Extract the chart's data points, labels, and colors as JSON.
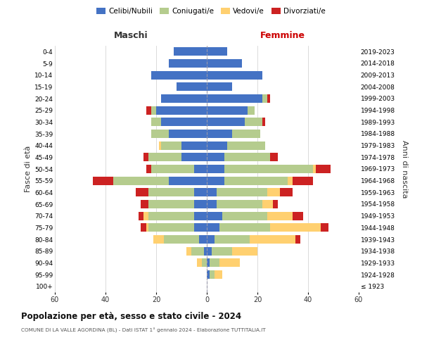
{
  "age_groups": [
    "100+",
    "95-99",
    "90-94",
    "85-89",
    "80-84",
    "75-79",
    "70-74",
    "65-69",
    "60-64",
    "55-59",
    "50-54",
    "45-49",
    "40-44",
    "35-39",
    "30-34",
    "25-29",
    "20-24",
    "15-19",
    "10-14",
    "5-9",
    "0-4"
  ],
  "birth_years": [
    "≤ 1923",
    "1924-1928",
    "1929-1933",
    "1934-1938",
    "1939-1943",
    "1944-1948",
    "1949-1953",
    "1954-1958",
    "1959-1963",
    "1964-1968",
    "1969-1973",
    "1974-1978",
    "1979-1983",
    "1984-1988",
    "1989-1993",
    "1994-1998",
    "1999-2003",
    "2004-2008",
    "2009-2013",
    "2014-2018",
    "2019-2023"
  ],
  "colors": {
    "celibi": "#4472C4",
    "coniugati": "#B5CC8E",
    "vedovi": "#FFD070",
    "divorziati": "#CC2222"
  },
  "maschi": {
    "celibi": [
      0,
      0,
      0,
      1,
      3,
      5,
      5,
      5,
      5,
      15,
      5,
      10,
      10,
      15,
      18,
      20,
      18,
      12,
      22,
      15,
      13
    ],
    "coniugati": [
      0,
      0,
      2,
      5,
      14,
      18,
      18,
      18,
      18,
      22,
      17,
      13,
      8,
      7,
      4,
      2,
      0,
      0,
      0,
      0,
      0
    ],
    "vedovi": [
      0,
      0,
      2,
      2,
      4,
      1,
      2,
      0,
      0,
      0,
      0,
      0,
      1,
      0,
      0,
      0,
      0,
      0,
      0,
      0,
      0
    ],
    "divorziati": [
      0,
      0,
      0,
      0,
      0,
      2,
      2,
      3,
      5,
      8,
      2,
      2,
      0,
      0,
      0,
      2,
      0,
      0,
      0,
      0,
      0
    ]
  },
  "femmine": {
    "celibi": [
      0,
      1,
      1,
      2,
      3,
      5,
      6,
      4,
      4,
      7,
      7,
      7,
      8,
      10,
      15,
      16,
      22,
      10,
      22,
      14,
      8
    ],
    "coniugati": [
      0,
      2,
      4,
      8,
      14,
      20,
      18,
      18,
      20,
      25,
      35,
      18,
      15,
      11,
      7,
      3,
      2,
      0,
      0,
      0,
      0
    ],
    "vedovi": [
      0,
      3,
      8,
      10,
      18,
      20,
      10,
      4,
      5,
      2,
      1,
      0,
      0,
      0,
      0,
      0,
      0,
      0,
      0,
      0,
      0
    ],
    "divorziati": [
      0,
      0,
      0,
      0,
      2,
      3,
      4,
      2,
      5,
      8,
      6,
      3,
      0,
      0,
      1,
      0,
      1,
      0,
      0,
      0,
      0
    ]
  },
  "xlim": 60,
  "title": "Popolazione per età, sesso e stato civile - 2024",
  "subtitle": "COMUNE DI LA VALLE AGORDINA (BL) - Dati ISTAT 1° gennaio 2024 - Elaborazione TUTTITALIA.IT",
  "ylabel_left": "Fasce di età",
  "ylabel_right": "Anni di nascita",
  "legend_labels": [
    "Celibi/Nubili",
    "Coniugati/e",
    "Vedovi/e",
    "Divorziati/e"
  ],
  "maschi_label": "Maschi",
  "femmine_label": "Femmine",
  "maschi_label_color": "#333333",
  "femmine_label_color": "#cc0000",
  "bg_color": "#ffffff",
  "grid_color": "#cccccc"
}
